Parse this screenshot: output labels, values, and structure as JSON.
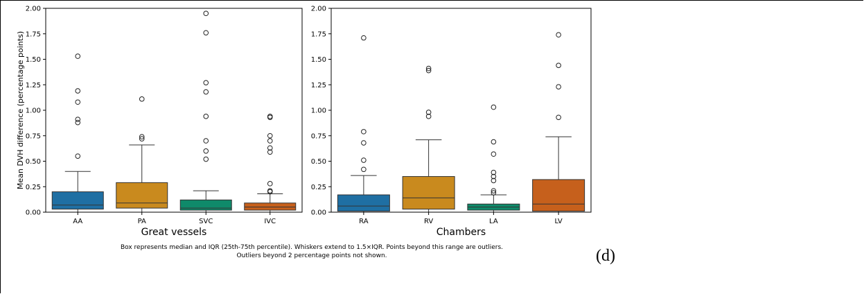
{
  "chart_data": [
    {
      "type": "box",
      "xlabel": "Great vessels",
      "ylabel": "Mean DVH difference (percentage points)",
      "ylim": [
        0,
        2.0
      ],
      "yticks": [
        "0.00",
        "0.25",
        "0.50",
        "0.75",
        "1.00",
        "1.25",
        "1.50",
        "1.75",
        "2.00"
      ],
      "grid": false,
      "categories": [
        "AA",
        "PA",
        "SVC",
        "IVC"
      ],
      "colors": [
        "#1f6fa3",
        "#c98a1e",
        "#0f8a6a",
        "#c6601c"
      ],
      "boxes": [
        {
          "category": "AA",
          "whislo": 0.0,
          "q1": 0.03,
          "median": 0.07,
          "q3": 0.2,
          "whishi": 0.4,
          "outliers": [
            0.55,
            0.88,
            0.91,
            1.08,
            1.19,
            1.53
          ]
        },
        {
          "category": "PA",
          "whislo": 0.0,
          "q1": 0.04,
          "median": 0.09,
          "q3": 0.29,
          "whishi": 0.66,
          "outliers": [
            0.72,
            0.74,
            1.11
          ]
        },
        {
          "category": "SVC",
          "whislo": 0.0,
          "q1": 0.02,
          "median": 0.04,
          "q3": 0.12,
          "whishi": 0.21,
          "outliers": [
            0.52,
            0.6,
            0.7,
            0.94,
            1.18,
            1.27,
            1.76,
            1.95
          ]
        },
        {
          "category": "IVC",
          "whislo": 0.0,
          "q1": 0.02,
          "median": 0.05,
          "q3": 0.09,
          "whishi": 0.18,
          "outliers": [
            0.2,
            0.21,
            0.28,
            0.59,
            0.63,
            0.7,
            0.75,
            0.93,
            0.94
          ]
        }
      ]
    },
    {
      "type": "box",
      "xlabel": "Chambers",
      "ylabel": "",
      "ylim": [
        0,
        2.0
      ],
      "yticks": [
        "0.00",
        "0.25",
        "0.50",
        "0.75",
        "1.00",
        "1.25",
        "1.50",
        "1.75",
        "2.00"
      ],
      "grid": false,
      "categories": [
        "RA",
        "RV",
        "LA",
        "LV"
      ],
      "colors": [
        "#1f6fa3",
        "#c98a1e",
        "#0f8a6a",
        "#c6601c"
      ],
      "boxes": [
        {
          "category": "RA",
          "whislo": 0.0,
          "q1": 0.01,
          "median": 0.06,
          "q3": 0.17,
          "whishi": 0.36,
          "outliers": [
            0.42,
            0.51,
            0.68,
            0.79,
            1.71
          ]
        },
        {
          "category": "RV",
          "whislo": 0.0,
          "q1": 0.03,
          "median": 0.14,
          "q3": 0.35,
          "whishi": 0.71,
          "outliers": [
            0.94,
            0.98,
            1.39,
            1.41
          ]
        },
        {
          "category": "LA",
          "whislo": 0.0,
          "q1": 0.02,
          "median": 0.05,
          "q3": 0.08,
          "whishi": 0.17,
          "outliers": [
            0.19,
            0.21,
            0.31,
            0.35,
            0.39,
            0.57,
            0.69,
            1.03
          ]
        },
        {
          "category": "LV",
          "whislo": 0.0,
          "q1": 0.01,
          "median": 0.08,
          "q3": 0.32,
          "whishi": 0.74,
          "outliers": [
            0.93,
            1.23,
            1.44,
            1.74
          ]
        }
      ]
    }
  ],
  "caption": {
    "line1": "Box represents median and IQR (25th-75th percentile). Whiskers extend to 1.5×IQR. Points beyond this range are outliers.",
    "line2": "Outliers beyond 2 percentage points not shown."
  },
  "panel_label": "(d)"
}
